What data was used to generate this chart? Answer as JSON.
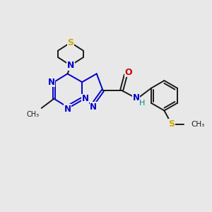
{
  "background_color": "#e8e8e8",
  "bond_color": "#1a1a1a",
  "ring_color": "#0000cc",
  "atom_colors": {
    "N": "#0000cc",
    "S": "#ccaa00",
    "O": "#cc0000",
    "H": "#008888",
    "C": "#1a1a1a"
  },
  "figure_size": [
    3.0,
    3.0
  ],
  "dpi": 100
}
